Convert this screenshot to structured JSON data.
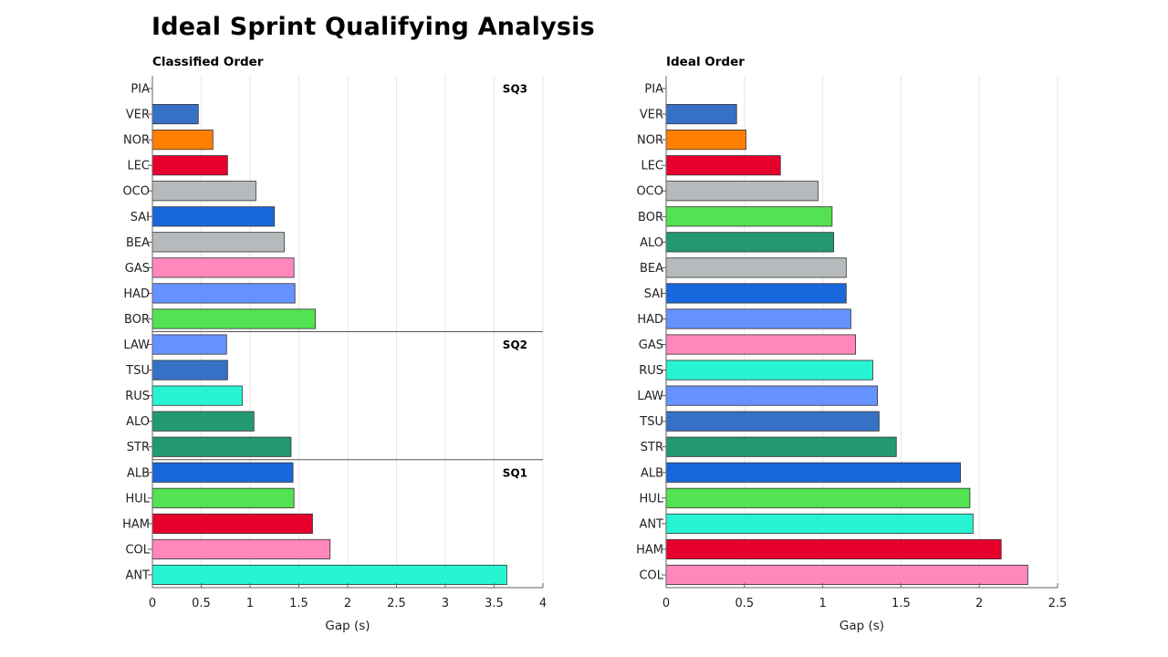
{
  "title": "Ideal Sprint Qualifying Analysis",
  "chart_data": [
    {
      "type": "bar",
      "orientation": "horizontal",
      "title": "Classified Order",
      "xlabel": "Gap (s)",
      "ylabel": "",
      "xlim": [
        0,
        4
      ],
      "xticks": [
        0,
        0.5,
        1,
        1.5,
        2,
        2.5,
        3,
        3.5,
        4
      ],
      "grid": "vertical",
      "segments": [
        {
          "label": "SQ3",
          "start": 0
        },
        {
          "label": "SQ2",
          "start": 10
        },
        {
          "label": "SQ1",
          "start": 15
        }
      ],
      "categories": [
        "PIA",
        "VER",
        "NOR",
        "LEC",
        "OCO",
        "SAI",
        "BEA",
        "GAS",
        "HAD",
        "BOR",
        "LAW",
        "TSU",
        "RUS",
        "ALO",
        "STR",
        "ALB",
        "HUL",
        "HAM",
        "COL",
        "ANT"
      ],
      "values": [
        0,
        0.47,
        0.62,
        0.77,
        1.06,
        1.25,
        1.35,
        1.45,
        1.46,
        1.67,
        0.76,
        0.77,
        0.92,
        1.04,
        1.42,
        1.44,
        1.45,
        1.64,
        1.82,
        3.63
      ],
      "colors": [
        "#3671C6",
        "#3671C6",
        "#FF8000",
        "#E8002D",
        "#B6BABD",
        "#1868DB",
        "#B6BABD",
        "#FF87BC",
        "#6692FF",
        "#52E252",
        "#6692FF",
        "#3671C6",
        "#27F4D2",
        "#229971",
        "#229971",
        "#1868DB",
        "#52E252",
        "#E8002D",
        "#FF87BC",
        "#27F4D2"
      ]
    },
    {
      "type": "bar",
      "orientation": "horizontal",
      "title": "Ideal Order",
      "xlabel": "Gap (s)",
      "ylabel": "",
      "xlim": [
        0,
        2.5
      ],
      "xticks": [
        0,
        0.5,
        1,
        1.5,
        2,
        2.5
      ],
      "grid": "vertical",
      "segments": [],
      "categories": [
        "PIA",
        "VER",
        "NOR",
        "LEC",
        "OCO",
        "BOR",
        "ALO",
        "BEA",
        "SAI",
        "HAD",
        "GAS",
        "RUS",
        "LAW",
        "TSU",
        "STR",
        "ALB",
        "HUL",
        "ANT",
        "HAM",
        "COL"
      ],
      "values": [
        0,
        0.45,
        0.51,
        0.73,
        0.97,
        1.06,
        1.07,
        1.15,
        1.15,
        1.18,
        1.21,
        1.32,
        1.35,
        1.36,
        1.47,
        1.88,
        1.94,
        1.96,
        2.14,
        2.31
      ],
      "colors": [
        "#3671C6",
        "#3671C6",
        "#FF8000",
        "#E8002D",
        "#B6BABD",
        "#52E252",
        "#229971",
        "#B6BABD",
        "#1868DB",
        "#6692FF",
        "#FF87BC",
        "#27F4D2",
        "#6692FF",
        "#3671C6",
        "#229971",
        "#1868DB",
        "#52E252",
        "#27F4D2",
        "#E8002D",
        "#FF87BC"
      ]
    }
  ]
}
